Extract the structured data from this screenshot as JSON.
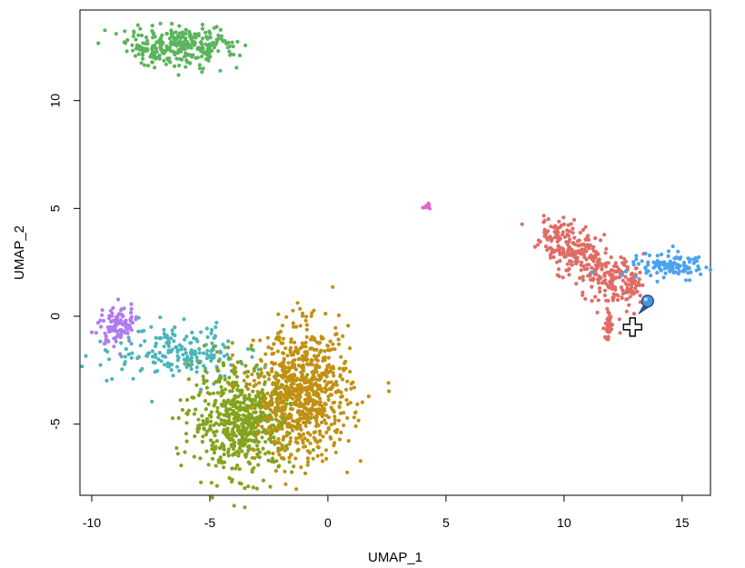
{
  "chart_data": {
    "type": "scatter",
    "title": "",
    "xlabel": "UMAP_1",
    "ylabel": "UMAP_2",
    "xlim": [
      -10.5,
      16.2
    ],
    "ylim": [
      -8.3,
      14.2
    ],
    "xticks": [
      -10,
      -5,
      0,
      5,
      10,
      15
    ],
    "yticks": [
      -5,
      0,
      5,
      10
    ],
    "xtick_labels": [
      "-10",
      "-5",
      "0",
      "5",
      "10",
      "15"
    ],
    "ytick_labels": [
      "-5",
      "0",
      "5",
      "10"
    ],
    "grid": false,
    "legend": "none",
    "series": [
      {
        "name": "cluster-red",
        "color": "#E06C66",
        "center": [
          10.6,
          1.8
        ],
        "spread": [
          1.1,
          1.0
        ],
        "approx_points": 420,
        "shape": "bird",
        "tail_to": [
          11.8,
          -1.0
        ]
      },
      {
        "name": "cluster-blue",
        "color": "#4AA3F0",
        "center": [
          14.4,
          2.3
        ],
        "spread": [
          0.8,
          0.3
        ],
        "approx_points": 120
      },
      {
        "name": "cluster-green",
        "color": "#5BB45C",
        "center": [
          -6.3,
          12.5
        ],
        "spread": [
          1.2,
          0.45
        ],
        "approx_points": 300
      },
      {
        "name": "cluster-magenta",
        "color": "#E066D0",
        "center": [
          4.2,
          5.1
        ],
        "spread": [
          0.08,
          0.06
        ],
        "approx_points": 10
      },
      {
        "name": "cluster-purple",
        "color": "#B07AF0",
        "center": [
          -8.9,
          -0.4
        ],
        "spread": [
          0.35,
          0.45
        ],
        "approx_points": 110
      },
      {
        "name": "cluster-teal",
        "color": "#4BB5B8",
        "center": [
          -6.3,
          -1.7
        ],
        "spread": [
          1.4,
          0.6
        ],
        "approx_points": 200
      },
      {
        "name": "cluster-olive",
        "color": "#84A31E",
        "center": [
          -3.6,
          -4.8
        ],
        "spread": [
          1.1,
          1.2
        ],
        "approx_points": 650
      },
      {
        "name": "cluster-gold",
        "color": "#C29012",
        "center": [
          -1.0,
          -3.6
        ],
        "spread": [
          1.0,
          1.5
        ],
        "approx_points": 750
      }
    ],
    "annotations": [
      {
        "type": "location-pin",
        "color": "#4A90D9",
        "at": [
          13.5,
          0.7
        ]
      },
      {
        "type": "crosshair-cursor",
        "at": [
          12.9,
          -0.5
        ]
      }
    ]
  }
}
